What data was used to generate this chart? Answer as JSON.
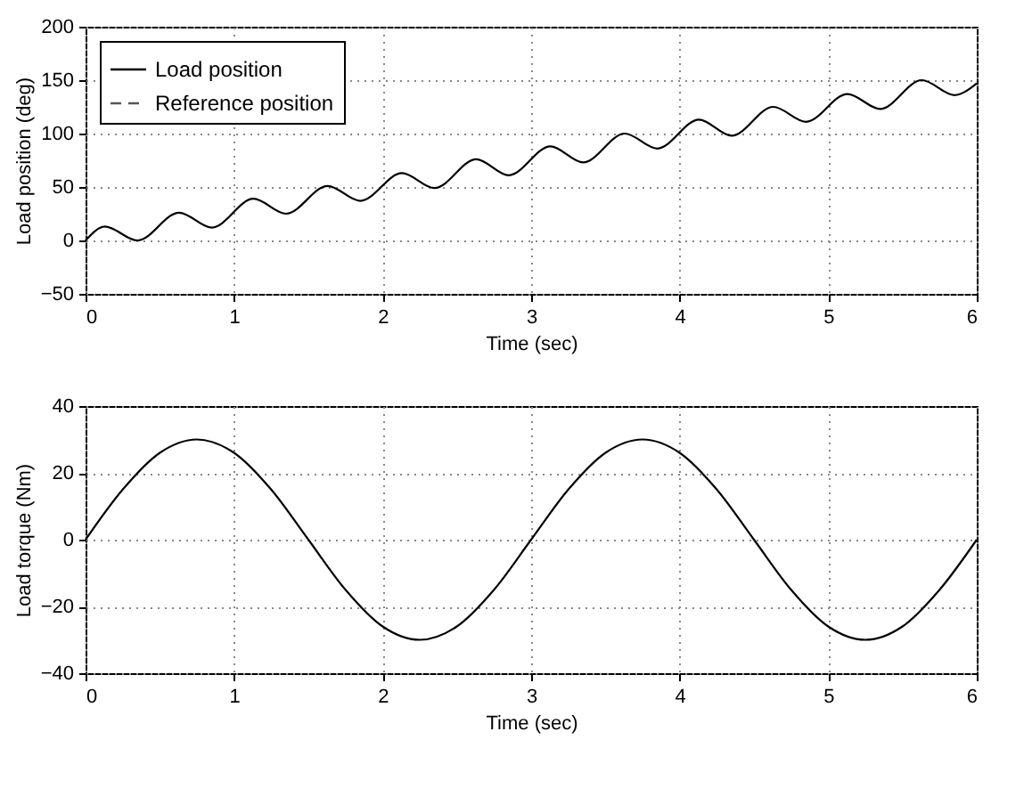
{
  "chart_data": [
    {
      "type": "line",
      "xlabel": "Time (sec)",
      "ylabel": "Load position (deg)",
      "xlim": [
        0,
        6
      ],
      "xticks": [
        0,
        1,
        2,
        3,
        4,
        5,
        6
      ],
      "ylim": [
        -50,
        200
      ],
      "yticks": [
        -50,
        0,
        50,
        100,
        150,
        200
      ],
      "grid": true,
      "legend": "top left",
      "series": [
        {
          "name": "Load position",
          "color": "#000000",
          "line_style": "solid",
          "x": [
            0,
            0.13,
            0.35,
            0.63,
            0.85,
            1.13,
            1.35,
            1.63,
            1.85,
            2.13,
            2.35,
            2.63,
            2.85,
            3.13,
            3.35,
            3.63,
            3.85,
            4.13,
            4.35,
            4.63,
            4.85,
            5.13,
            5.35,
            5.63,
            5.85,
            6
          ],
          "values": [
            0,
            13,
            0,
            26,
            12,
            39,
            25,
            51,
            37,
            63,
            49,
            76,
            61,
            88,
            73,
            100,
            86,
            113,
            98,
            125,
            111,
            137,
            123,
            150,
            136,
            147
          ]
        },
        {
          "name": "Reference position",
          "color": "#555555",
          "line_style": "dashed",
          "values": [
            null
          ]
        }
      ]
    },
    {
      "type": "line",
      "xlabel": "Time (sec)",
      "ylabel": "Load torque (Nm)",
      "xlim": [
        0,
        6
      ],
      "xticks": [
        0,
        1,
        2,
        3,
        4,
        5,
        6
      ],
      "ylim": [
        -40,
        40
      ],
      "yticks": [
        -40,
        -20,
        0,
        20,
        40
      ],
      "grid": true,
      "series": [
        {
          "color": "#000000",
          "line_style": "solid",
          "x": [
            0,
            0.25,
            0.5,
            0.75,
            1,
            1.25,
            1.5,
            1.75,
            2,
            2.25,
            2.5,
            2.75,
            3,
            3.25,
            3.5,
            3.75,
            4,
            4.25,
            4.5,
            4.75,
            5,
            5.25,
            5.5,
            5.75,
            6
          ],
          "values": [
            0,
            15,
            26,
            30,
            26,
            15,
            0,
            -15,
            -26,
            -30,
            -26,
            -15,
            0,
            15,
            26,
            30,
            26,
            15,
            0,
            -15,
            -26,
            -30,
            -26,
            -15,
            0
          ]
        }
      ]
    }
  ]
}
